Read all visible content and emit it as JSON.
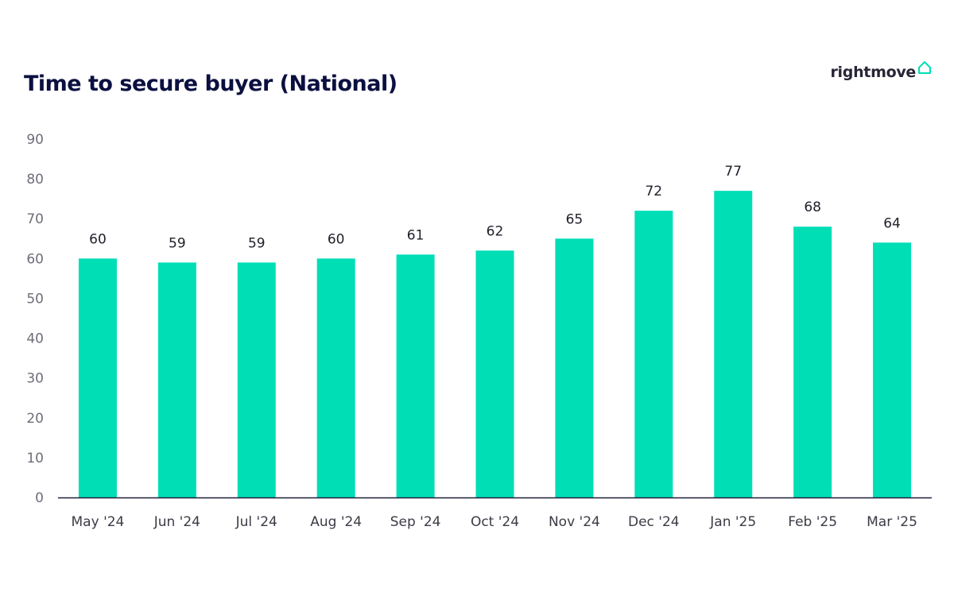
{
  "header": {
    "title": "Time to secure buyer (National)"
  },
  "brand": {
    "name": "rightmove",
    "icon": "house-outline-icon",
    "icon_color": "#00deb6"
  },
  "colors": {
    "bar": "#00deb6",
    "axis": "#1f1f3a",
    "tick_text": "#6e6e7a"
  },
  "chart_data": {
    "type": "bar",
    "title": "Time to secure buyer (National)",
    "xlabel": "",
    "ylabel": "",
    "ylim": [
      0,
      90
    ],
    "yticks": [
      0,
      10,
      20,
      30,
      40,
      50,
      60,
      70,
      80,
      90
    ],
    "grid": false,
    "categories": [
      "May '24",
      "Jun '24",
      "Jul '24",
      "Aug '24",
      "Sep '24",
      "Oct '24",
      "Nov '24",
      "Dec '24",
      "Jan '25",
      "Feb '25",
      "Mar '25"
    ],
    "values": [
      60,
      59,
      59,
      60,
      61,
      62,
      65,
      72,
      77,
      68,
      64
    ],
    "data_labels": [
      "60",
      "59",
      "59",
      "60",
      "61",
      "62",
      "65",
      "72",
      "77",
      "68",
      "64"
    ]
  }
}
